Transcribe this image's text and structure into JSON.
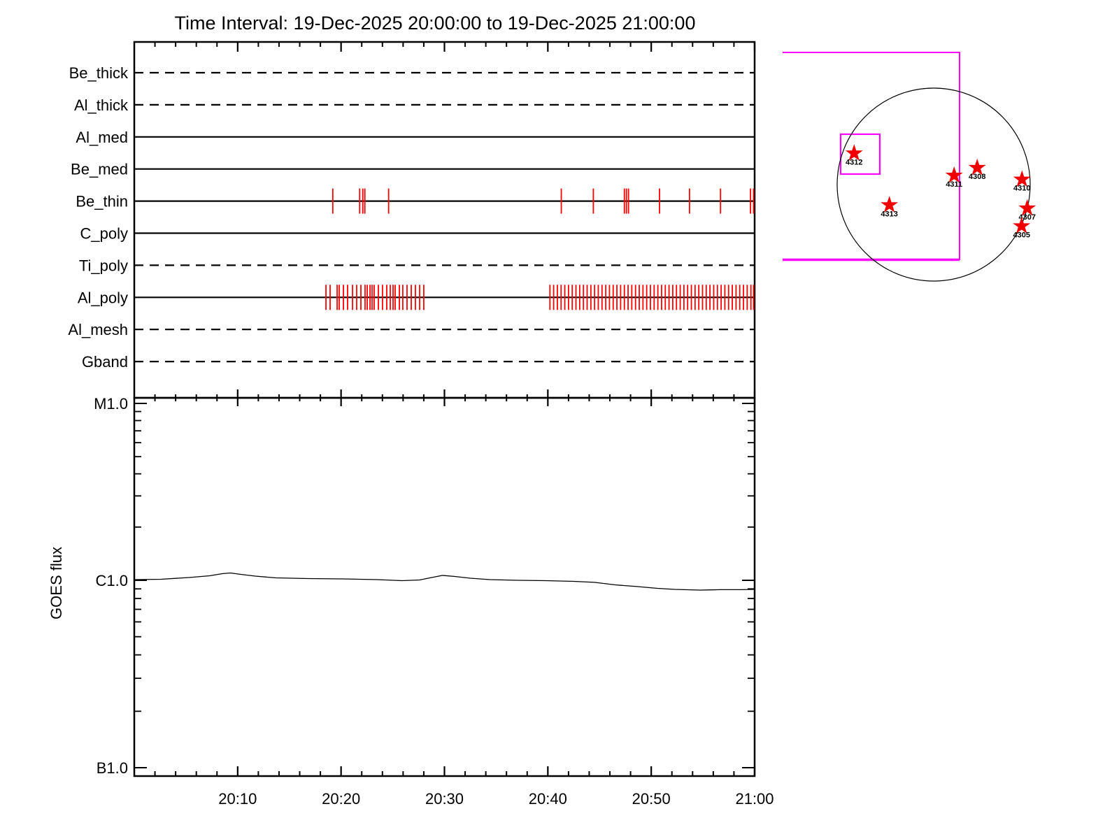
{
  "title": "Time Interval: 19-Dec-2025 20:00:00 to 19-Dec-2025 21:00:00",
  "colors": {
    "background": "#ffffff",
    "axis": "#000000",
    "exposure_tick_red": "#ff0000",
    "star_red": "#f00000",
    "fov_magenta": "#ff00ff"
  },
  "chart_data": [
    {
      "type": "timeline",
      "title": "Time Interval: 19-Dec-2025 20:00:00 to 19-Dec-2025 21:00:00",
      "x_range_minutes": [
        0,
        60
      ],
      "x_major_ticks": [
        {
          "t": 10,
          "label": "20:10"
        },
        {
          "t": 20,
          "label": "20:20"
        },
        {
          "t": 30,
          "label": "20:30"
        },
        {
          "t": 40,
          "label": "20:40"
        },
        {
          "t": 50,
          "label": "20:50"
        },
        {
          "t": 60,
          "label": "21:00"
        }
      ],
      "x_minor_step_minutes": 2,
      "rows": [
        {
          "label": "Be_thick",
          "line": "dashed",
          "events_min": []
        },
        {
          "label": "Al_thick",
          "line": "dashed",
          "events_min": []
        },
        {
          "label": "Al_med",
          "line": "solid",
          "events_min": []
        },
        {
          "label": "Be_med",
          "line": "solid",
          "events_min": []
        },
        {
          "label": "Be_thin",
          "line": "solid",
          "events_min": [
            19.2,
            21.8,
            22.1,
            22.3,
            24.6,
            41.3,
            44.4,
            47.4,
            47.6,
            47.8,
            50.8,
            53.7,
            56.7,
            59.6,
            59.9
          ]
        },
        {
          "label": "C_poly",
          "line": "solid",
          "events_min": []
        },
        {
          "label": "Ti_poly",
          "line": "dashed",
          "events_min": []
        },
        {
          "label": "Al_poly",
          "line": "solid",
          "events_min": [
            18.54,
            18.94,
            19.62,
            19.82,
            20.23,
            20.63,
            21.11,
            21.51,
            21.92,
            22.32,
            22.53,
            22.8,
            23.0,
            23.2,
            23.61,
            24.01,
            24.42,
            24.76,
            25.03,
            25.23,
            25.64,
            25.97,
            26.38,
            26.79,
            27.19,
            27.6,
            28.0,
            40.2,
            40.56,
            40.92,
            41.28,
            41.64,
            42.0,
            42.36,
            42.72,
            43.08,
            43.44,
            43.8,
            44.16,
            44.52,
            44.88,
            45.24,
            45.6,
            45.96,
            46.32,
            46.68,
            47.04,
            47.4,
            47.76,
            48.12,
            48.48,
            48.84,
            49.2,
            49.56,
            49.92,
            50.28,
            50.64,
            51.0,
            51.36,
            51.72,
            52.08,
            52.44,
            52.8,
            53.16,
            53.52,
            53.88,
            54.24,
            54.6,
            54.96,
            55.32,
            55.68,
            56.04,
            56.4,
            56.76,
            57.12,
            57.48,
            57.84,
            58.2,
            58.56,
            58.92,
            59.28,
            59.64,
            59.9
          ]
        },
        {
          "label": "Al_mesh",
          "line": "dashed",
          "events_min": []
        },
        {
          "label": "Gband",
          "line": "dashed",
          "events_min": []
        }
      ]
    },
    {
      "type": "line",
      "name": "GOES flux",
      "ylabel": "GOES flux",
      "y_scale": "log",
      "y_ticks": [
        {
          "label": "M1.0",
          "flux": 1e-05
        },
        {
          "label": "C1.0",
          "flux": 1e-06
        },
        {
          "label": "B1.0",
          "flux": 1e-07
        }
      ],
      "series": [
        {
          "name": "GOES flux",
          "t_min": [
            0,
            2.6,
            5.3,
            7.3,
            8.5,
            9.3,
            10.3,
            11.7,
            13.7,
            16.8,
            20.2,
            23.5,
            25.9,
            27.6,
            28.6,
            29.8,
            31,
            32.5,
            34.4,
            37.1,
            39.8,
            42.5,
            44.5,
            46.5,
            48.6,
            50.6,
            52.3,
            54.7,
            56.7,
            58.7,
            60
          ],
          "flux": [
            1.009e-06,
            1.014e-06,
            1.037e-06,
            1.061e-06,
            1.09e-06,
            1.1e-06,
            1.08e-06,
            1.056e-06,
            1.032e-06,
            1.023e-06,
            1.018e-06,
            1.009e-06,
            9.96e-07,
            1.005e-06,
            1.032e-06,
            1.066e-06,
            1.051e-06,
            1.028e-06,
            1.009e-06,
            1e-06,
            9.96e-07,
            9.87e-07,
            9.75e-07,
            9.46e-07,
            9.26e-07,
            9.06e-07,
            8.94e-07,
            8.87e-07,
            8.91e-07,
            8.91e-07,
            8.94e-07
          ]
        }
      ]
    },
    {
      "type": "scatter",
      "name": "solar-disk-active-regions",
      "marker": "star",
      "regions": [
        {
          "label": "4312",
          "x_r": -0.824,
          "y_r": -0.324
        },
        {
          "label": "4311",
          "x_r": 0.212,
          "y_r": -0.094
        },
        {
          "label": "4308",
          "x_r": 0.451,
          "y_r": -0.174
        },
        {
          "label": "4310",
          "x_r": 0.915,
          "y_r": -0.053
        },
        {
          "label": "4313",
          "x_r": -0.459,
          "y_r": 0.212
        },
        {
          "label": "4307",
          "x_r": 0.969,
          "y_r": 0.246
        },
        {
          "label": "4305",
          "x_r": 0.911,
          "y_r": 0.43
        }
      ],
      "fov_boxes_r": [
        {
          "x1": -1.565,
          "y1": -1.37,
          "x2": 0.268,
          "y2": 0.775,
          "open_left": true,
          "thick_bottom": true
        },
        {
          "x1": -0.964,
          "y1": -0.522,
          "x2": -0.558,
          "y2": -0.109,
          "open_left": false,
          "thick_bottom": false
        }
      ]
    }
  ]
}
